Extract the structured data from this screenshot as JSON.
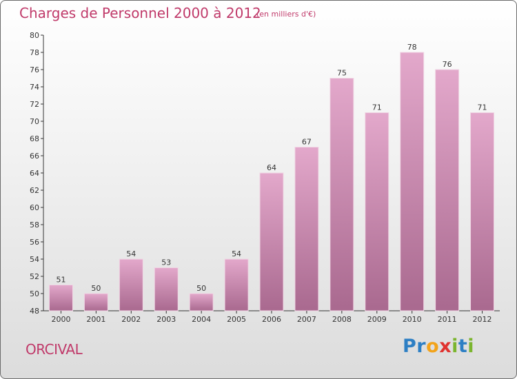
{
  "title": "Charges de Personnel 2000 à 2012",
  "unit_note": "(en milliers d'€)",
  "city": "ORCIVAL",
  "logo": {
    "letters": [
      {
        "ch": "P",
        "color": "#2d7fc4"
      },
      {
        "ch": "r",
        "color": "#2d7fc4"
      },
      {
        "ch": "o",
        "color": "#f2a31a"
      },
      {
        "ch": "x",
        "color": "#e0322f"
      },
      {
        "ch": "i",
        "color": "#7bb52e"
      },
      {
        "ch": "t",
        "color": "#2d7fc4"
      },
      {
        "ch": "i",
        "color": "#7bb52e"
      }
    ]
  },
  "colors": {
    "bar_top": "#e3a8cb",
    "bar_bottom": "#a9698f",
    "text": "#c03a6a"
  },
  "chart_data": {
    "type": "bar",
    "categories": [
      "2000",
      "2001",
      "2002",
      "2003",
      "2004",
      "2005",
      "2006",
      "2007",
      "2008",
      "2009",
      "2010",
      "2011",
      "2012"
    ],
    "values": [
      51,
      50,
      54,
      53,
      50,
      54,
      64,
      67,
      75,
      71,
      78,
      76,
      71
    ],
    "ylim": [
      48,
      80
    ],
    "yticks": [
      48,
      50,
      52,
      54,
      56,
      58,
      60,
      62,
      64,
      66,
      68,
      70,
      72,
      74,
      76,
      78,
      80
    ],
    "grid": false
  }
}
